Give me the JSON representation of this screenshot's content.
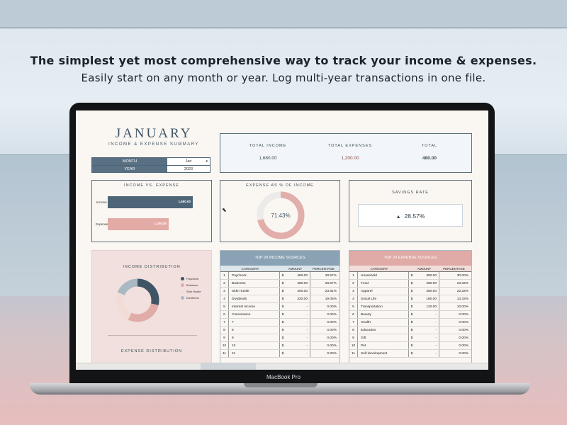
{
  "headline": {
    "line1": "The simplest yet most comprehensive way to track your income & expenses.",
    "line2": "Easily start on any month or year. Log multi-year transactions in one file."
  },
  "device_label": "MacBook Pro",
  "dashboard": {
    "month_title": "JANUARY",
    "subtitle": "INCOME & EXPENSE SUMMARY",
    "selectors": {
      "month_label": "MONTH",
      "month_value": "Jan",
      "year_label": "YEAR",
      "year_value": "2023"
    },
    "totals": {
      "income_label": "TOTAL INCOME",
      "income_value": "1,680.00",
      "expenses_label": "TOTAL EXPENSES",
      "expenses_value": "1,200.00",
      "total_label": "TOTAL",
      "total_value": "480.00"
    },
    "income_vs_expense": {
      "title": "INCOME VS. EXPENSE",
      "income_label": "Income",
      "income_value": "1,680.00",
      "expense_label": "Expense",
      "expense_value": "1,200.00"
    },
    "expense_pct": {
      "title": "EXPENSE AS % OF INCOME",
      "value": "71.43%",
      "fraction": 0.7143
    },
    "savings": {
      "title": "SAVINGS RATE",
      "arrow": "▲",
      "value": "28.57%"
    },
    "distribution": {
      "income_title": "INCOME DISTRIBUTION",
      "expense_title": "EXPENSE DISTRIBUTION",
      "legend": [
        "Paycheck",
        "Business",
        "Side Hustle",
        "Dividends"
      ]
    },
    "income_sources": {
      "title": "TOP 20 INCOME SOURCES",
      "col_category": "CATEGORY",
      "col_amount": "AMOUNT",
      "col_percentage": "PERCENTAGE",
      "rows": [
        {
          "n": "1",
          "cat": "Paycheck",
          "cur": "$",
          "amt": "480.00",
          "pct": "28.57%"
        },
        {
          "n": "2",
          "cat": "Business",
          "cur": "$",
          "amt": "480.00",
          "pct": "28.57%"
        },
        {
          "n": "3",
          "cat": "Side Hustle",
          "cur": "$",
          "amt": "400.00",
          "pct": "23.81%"
        },
        {
          "n": "4",
          "cat": "Dividends",
          "cur": "$",
          "amt": "320.00",
          "pct": "19.05%"
        },
        {
          "n": "5",
          "cat": "Interest Income",
          "cur": "$",
          "amt": "-",
          "pct": "0.00%"
        },
        {
          "n": "6",
          "cat": "Commission",
          "cur": "$",
          "amt": "-",
          "pct": "0.00%"
        },
        {
          "n": "7",
          "cat": "7",
          "cur": "$",
          "amt": "-",
          "pct": "0.00%"
        },
        {
          "n": "8",
          "cat": "8",
          "cur": "$",
          "amt": "-",
          "pct": "0.00%"
        },
        {
          "n": "9",
          "cat": "9",
          "cur": "$",
          "amt": "-",
          "pct": "0.00%"
        },
        {
          "n": "10",
          "cat": "10",
          "cur": "$",
          "amt": "-",
          "pct": "0.00%"
        },
        {
          "n": "11",
          "cat": "11",
          "cur": "$",
          "amt": "-",
          "pct": "0.00%"
        }
      ]
    },
    "expense_sources": {
      "title": "TOP 20 EXPENSE SOURCES",
      "col_category": "CATEGORY",
      "col_amount": "AMOUNT",
      "col_percentage": "PERCENTAGE",
      "rows": [
        {
          "n": "1",
          "cat": "Household",
          "cur": "$",
          "amt": "360.00",
          "pct": "30.00%"
        },
        {
          "n": "2",
          "cat": "Food",
          "cur": "$",
          "amt": "280.00",
          "pct": "23.33%"
        },
        {
          "n": "3",
          "cat": "Apparel",
          "cur": "$",
          "amt": "280.00",
          "pct": "23.33%"
        },
        {
          "n": "4",
          "cat": "Social Life",
          "cur": "$",
          "amt": "160.00",
          "pct": "13.33%"
        },
        {
          "n": "5",
          "cat": "Transportation",
          "cur": "$",
          "amt": "120.00",
          "pct": "10.00%"
        },
        {
          "n": "6",
          "cat": "Beauty",
          "cur": "$",
          "amt": "-",
          "pct": "0.00%"
        },
        {
          "n": "7",
          "cat": "Health",
          "cur": "$",
          "amt": "-",
          "pct": "0.00%"
        },
        {
          "n": "8",
          "cat": "Education",
          "cur": "$",
          "amt": "-",
          "pct": "0.00%"
        },
        {
          "n": "9",
          "cat": "Gift",
          "cur": "$",
          "amt": "-",
          "pct": "0.00%"
        },
        {
          "n": "10",
          "cat": "Pet",
          "cur": "$",
          "amt": "-",
          "pct": "0.00%"
        },
        {
          "n": "11",
          "cat": "Self-development",
          "cur": "$",
          "amt": "-",
          "pct": "0.00%"
        }
      ]
    },
    "colors": {
      "income_bar": "#4d6677",
      "expense_bar": "#e3aba6",
      "ring_track": "#ecebea",
      "donut": [
        "#3f5566",
        "#e0aca7",
        "#f2dcd8",
        "#a9b9c4"
      ]
    }
  }
}
